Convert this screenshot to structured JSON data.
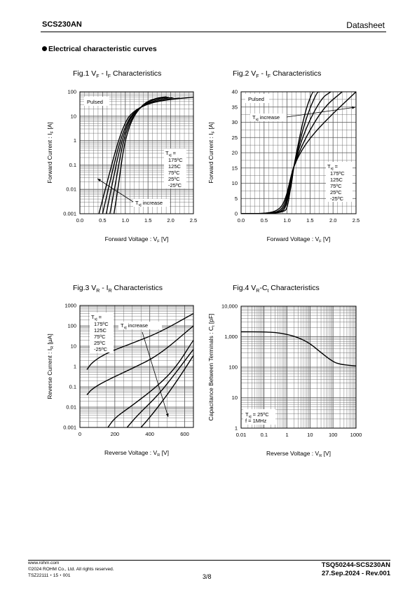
{
  "header": {
    "product": "SCS230AN",
    "doc_type": "Datasheet"
  },
  "section_title": "Electrical characteristic curves",
  "figures": {
    "fig1": {
      "prefix": "Fig.1 V",
      "s1": "F",
      "mid": " - I",
      "s2": "F",
      "suffix": " Characteristics"
    },
    "fig2": {
      "prefix": "Fig.2 V",
      "s1": "F",
      "mid": " - I",
      "s2": "F",
      "suffix": " Characteristics"
    },
    "fig3": {
      "prefix": "Fig.3 V",
      "s1": "R",
      "mid": " - I",
      "s2": "R",
      "suffix": " Characteristics"
    },
    "fig4": {
      "prefix": "Fig.4 V",
      "s1": "R",
      "mid": "-C",
      "s2": "t",
      "suffix": " Characteristics"
    }
  },
  "chart_data": [
    {
      "type": "line",
      "title": "Fig.1 VF - IF Characteristics",
      "xlabel": "Forward Voltage : VF [V]",
      "ylabel": "Forward Current : IF [A]",
      "xscale": "linear",
      "yscale": "log",
      "xlim": [
        0,
        2.5
      ],
      "ylim": [
        0.001,
        100
      ],
      "xticks": [
        "0.0",
        "0.5",
        "1.0",
        "1.5",
        "2.0",
        "2.5"
      ],
      "yticks": [
        "0.001",
        "0.01",
        "0.1",
        "1",
        "10",
        "100"
      ],
      "grid": true,
      "annotations": [
        "Pulsed",
        "Tvj increase"
      ],
      "legend_title": "Tvj =",
      "legend_items": [
        "175ºC",
        "125C",
        "75ºC",
        "25ºC",
        "-25ºC"
      ],
      "series": [
        {
          "name": "175ºC",
          "x": [
            0.42,
            0.6,
            0.8,
            0.95,
            1.1,
            1.4,
            1.8,
            2.5
          ],
          "y": [
            0.001,
            0.02,
            0.5,
            3.5,
            12,
            28,
            45,
            60
          ]
        },
        {
          "name": "125C",
          "x": [
            0.5,
            0.66,
            0.84,
            0.99,
            1.14,
            1.42,
            1.85,
            2.2
          ],
          "y": [
            0.001,
            0.02,
            0.5,
            3.5,
            12,
            30,
            48,
            55
          ]
        },
        {
          "name": "75ºC",
          "x": [
            0.58,
            0.72,
            0.88,
            1.02,
            1.16,
            1.45,
            1.82,
            2.05
          ],
          "y": [
            0.001,
            0.02,
            0.5,
            3.5,
            12,
            34,
            52,
            58
          ]
        },
        {
          "name": "25ºC",
          "x": [
            0.66,
            0.79,
            0.92,
            1.05,
            1.19,
            1.45,
            1.78,
            1.95
          ],
          "y": [
            0.001,
            0.02,
            0.5,
            3.5,
            12,
            38,
            56,
            60
          ]
        },
        {
          "name": "-25ºC",
          "x": [
            0.75,
            0.86,
            0.96,
            1.08,
            1.21,
            1.45,
            1.75,
            1.9
          ],
          "y": [
            0.001,
            0.02,
            0.5,
            3.5,
            12,
            40,
            58,
            62
          ]
        }
      ]
    },
    {
      "type": "line",
      "title": "Fig.2 VF - IF Characteristics",
      "xlabel": "Forward Voltage : VF [V]",
      "ylabel": "Forward Current : IF [A]",
      "xscale": "linear",
      "yscale": "linear",
      "xlim": [
        0,
        2.5
      ],
      "ylim": [
        0,
        40
      ],
      "xticks": [
        "0.0",
        "0.5",
        "1.0",
        "1.5",
        "2.0",
        "2.5"
      ],
      "yticks": [
        "0",
        "5",
        "10",
        "15",
        "20",
        "25",
        "30",
        "35",
        "40"
      ],
      "grid": true,
      "annotations": [
        "Pulsed",
        "Tvj increase"
      ],
      "legend_title": "Tvj =",
      "legend_items": [
        "175ºC",
        "125C",
        "75ºC",
        "25ºC",
        "-25ºC"
      ],
      "series": [
        {
          "name": "175ºC",
          "x": [
            0.0,
            0.6,
            0.85,
            0.97,
            1.05,
            1.15,
            1.4,
            1.8,
            2.5
          ],
          "y": [
            0,
            0.1,
            1.5,
            5,
            10,
            16,
            23,
            30,
            40
          ]
        },
        {
          "name": "125C",
          "x": [
            0.0,
            0.7,
            0.9,
            1.0,
            1.05,
            1.15,
            1.4,
            1.8,
            2.2
          ],
          "y": [
            0,
            0.1,
            1.5,
            5.5,
            10,
            16,
            25,
            35,
            40
          ]
        },
        {
          "name": "75ºC",
          "x": [
            0.0,
            0.8,
            0.95,
            1.02,
            1.07,
            1.15,
            1.4,
            1.75,
            1.95
          ],
          "y": [
            0,
            0.1,
            2,
            6,
            10,
            16,
            28,
            38,
            40
          ]
        },
        {
          "name": "25ºC",
          "x": [
            0.0,
            0.88,
            0.98,
            1.04,
            1.09,
            1.15,
            1.4,
            1.65,
            1.72
          ],
          "y": [
            0,
            0.1,
            2.5,
            6.5,
            10,
            16,
            31,
            40,
            40
          ]
        },
        {
          "name": "-25ºC",
          "x": [
            0.0,
            0.95,
            1.02,
            1.06,
            1.1,
            1.15,
            1.38,
            1.55,
            1.6
          ],
          "y": [
            0,
            0.1,
            3,
            7,
            10,
            16,
            33,
            40,
            40
          ]
        }
      ]
    },
    {
      "type": "line",
      "title": "Fig.3 VR - IR Characteristics",
      "xlabel": "Reverse Voltage : VR [V]",
      "ylabel": "Reverse Current : IR [μA]",
      "xscale": "linear",
      "yscale": "log",
      "xlim": [
        0,
        650
      ],
      "ylim": [
        0.001,
        1000
      ],
      "xticks": [
        "0",
        "200",
        "400",
        "600"
      ],
      "yticks": [
        "0.001",
        "0.01",
        "0.1",
        "1",
        "10",
        "100",
        "1000"
      ],
      "grid": true,
      "annotations": [
        "Tvj increase"
      ],
      "legend_title": "Tvj =",
      "legend_items": [
        "175ºC",
        "125C",
        "75ºC",
        "25ºC",
        "-25ºC"
      ],
      "series": [
        {
          "name": "175ºC",
          "x": [
            40,
            70,
            150,
            300,
            450,
            650
          ],
          "y": [
            0.7,
            1.6,
            4.5,
            14,
            45,
            400
          ]
        },
        {
          "name": "125C",
          "x": [
            40,
            70,
            150,
            300,
            450,
            650
          ],
          "y": [
            0.04,
            0.08,
            0.2,
            0.8,
            3.5,
            100
          ]
        },
        {
          "name": "75ºC",
          "x": [
            160,
            200,
            300,
            450,
            550,
            650
          ],
          "y": [
            0.001,
            0.003,
            0.012,
            0.12,
            0.9,
            20
          ]
        },
        {
          "name": "25ºC",
          "x": [
            270,
            330,
            450,
            550,
            650
          ],
          "y": [
            0.001,
            0.004,
            0.04,
            0.5,
            7
          ]
        },
        {
          "name": "-25ºC",
          "x": [
            350,
            420,
            500,
            580,
            650
          ],
          "y": [
            0.001,
            0.005,
            0.04,
            0.4,
            3.5
          ]
        }
      ]
    },
    {
      "type": "line",
      "title": "Fig.4 VR-Ct Characteristics",
      "xlabel": "Reverse Voltage : VR [V]",
      "ylabel": "Capacitance Between Terminals : Ct [pF]",
      "xscale": "log",
      "yscale": "log",
      "xlim": [
        0.01,
        1000
      ],
      "ylim": [
        1,
        10000
      ],
      "xticks": [
        "0.01",
        "0.1",
        "1",
        "10",
        "100",
        "1000"
      ],
      "yticks": [
        "1",
        "10",
        "100",
        "1,000",
        "10,000"
      ],
      "grid": true,
      "annotations": [
        "Tvj = 25ºC",
        "f = 1MHz"
      ],
      "series": [
        {
          "name": "",
          "x": [
            0.01,
            0.1,
            0.3,
            1,
            3,
            10,
            30,
            100,
            200,
            500,
            1000
          ],
          "y": [
            1450,
            1430,
            1380,
            1200,
            950,
            600,
            300,
            150,
            125,
            115,
            110
          ]
        }
      ]
    }
  ],
  "footer": {
    "website": "www.rohm.com",
    "copyright": "©2024 ROHM Co., Ltd. All rights reserved.",
    "code": "TSZ22111・15・001",
    "page": "3/8",
    "doc_no": "TSQ50244-SCS230AN",
    "date_rev": "27.Sep.2024 - Rev.001"
  }
}
